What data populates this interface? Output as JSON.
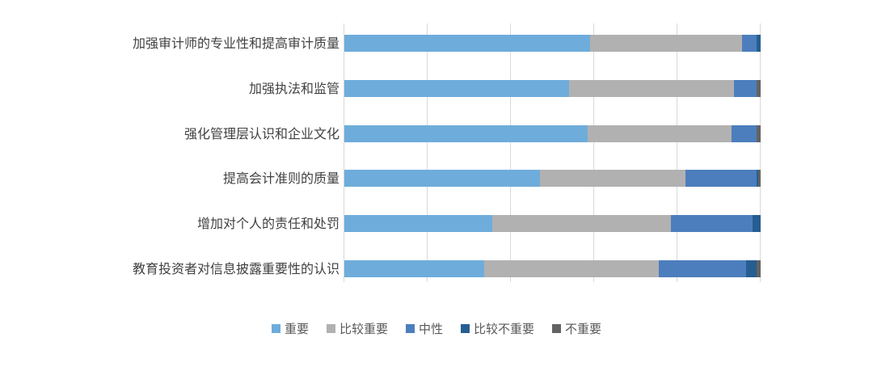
{
  "chart_data": {
    "type": "bar",
    "orientation": "horizontal-stacked",
    "title": "",
    "xlabel": "",
    "ylabel": "",
    "xlim": [
      0,
      100
    ],
    "gridline_interval": 20,
    "grid": "vertical-only",
    "legend_position": "bottom-center",
    "categories": [
      "加强审计师的专业性和提高审计质量",
      "加强执法和监管",
      "强化管理层认识和企业文化",
      "提高会计准则的质量",
      "增加对个人的责任和处罚",
      "教育投资者对信息披露重要性的认识"
    ],
    "series": [
      {
        "name": "重要",
        "color": "#6EACDB",
        "values": [
          59,
          54,
          58.5,
          47,
          35.5,
          33.5
        ]
      },
      {
        "name": "比较重要",
        "color": "#B1B1B1",
        "values": [
          36.5,
          39.5,
          34.5,
          35,
          43,
          42
        ]
      },
      {
        "name": "中性",
        "color": "#4C7EBD",
        "values": [
          3.5,
          5.5,
          6,
          17,
          19.5,
          21
        ]
      },
      {
        "name": "比较不重要",
        "color": "#255E91",
        "values": [
          1,
          0,
          0,
          0.5,
          2,
          2.5
        ]
      },
      {
        "name": "不重要",
        "color": "#636363",
        "values": [
          0,
          1,
          1,
          0.5,
          0,
          1
        ]
      }
    ]
  },
  "layout_colors": {
    "background": "#FFFFFF",
    "gridline": "#D9D9D9",
    "category_text": "#404040",
    "legend_text": "#595959"
  }
}
